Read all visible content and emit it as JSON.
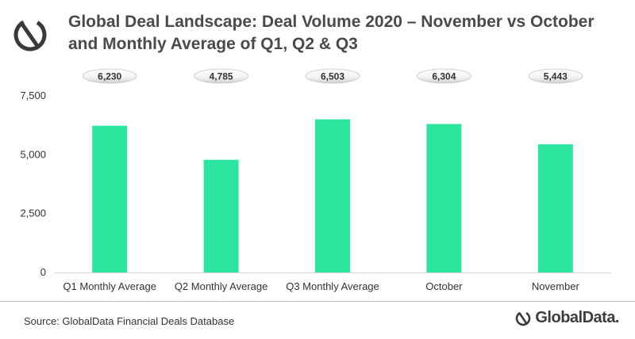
{
  "header": {
    "title_line1": "Global Deal Landscape: Deal Volume 2020 – November vs October",
    "title_line2": "and Monthly Average of Q1, Q2 & Q3",
    "logo_icon": "globaldata-mark-icon"
  },
  "footer": {
    "source": "Source: GlobalData Financial Deals Database",
    "brand": "GlobalData."
  },
  "colors": {
    "bar": "#2ce6a0",
    "axis_text": "#333333",
    "grid": "#d9d9d9"
  },
  "chart_data": {
    "type": "bar",
    "categories": [
      "Q1 Monthly Average",
      "Q2 Monthly Average",
      "Q3 Monthly Average",
      "October",
      "November"
    ],
    "values": [
      6230,
      4785,
      6503,
      6304,
      5443
    ],
    "value_labels": [
      "6,230",
      "4,785",
      "6,503",
      "6,304",
      "5,443"
    ],
    "yticks": [
      0,
      2500,
      5000,
      7500
    ],
    "ytick_labels": [
      "0",
      "2,500",
      "5,000",
      "7,500"
    ],
    "ylim": [
      0,
      7500
    ],
    "grid": false,
    "legend": "none"
  }
}
